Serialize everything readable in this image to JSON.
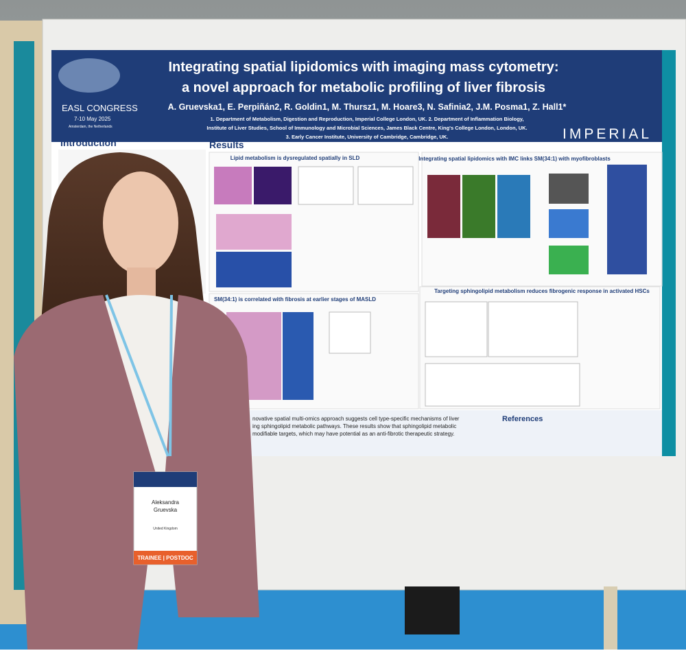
{
  "poster": {
    "title": [
      "Integrating spatial lipidomics with imaging mass cytometry:",
      "a novel approach for metabolic profiling of liver fibrosis"
    ],
    "authors": "A. Gruevska1, E. Perpiñán2, R. Goldin1, M. Thursz1, M. Hoare3, N. Safinia2, J.M. Posma1, Z. Hall1*",
    "affiliations": [
      "1. Department of Metabolism, Digestion and Reproduction, Imperial College London, UK. 2. Department of Inflammation Biology,",
      "Institute of Liver Studies, School of Immunology and Microbial Sciences, James Black Centre, King's College London, London, UK.",
      "3. Early Cancer Institute, University of Cambridge, Cambridge, UK."
    ],
    "conference": {
      "name": "EASL CONGRESS",
      "dates": "7-10 May 2025",
      "location": "Amsterdam, the Netherlands"
    },
    "brand": "IMPERIAL",
    "sections": {
      "introduction": "Introduction",
      "results": "Results",
      "references": "References"
    },
    "panels": [
      "Lipid metabolism is dysregulated spatially in SLD",
      "Integrating spatial lipidomics with IMC links SM(34:1) with myofibroblasts",
      "SM(34:1) is correlated with fibrosis at earlier stages of MASLD",
      "Targeting sphingolipid metabolism reduces fibrogenic response in activated HSCs"
    ],
    "conclusion": [
      "novative spatial multi-omics approach suggests cell type-specific mechanisms of liver",
      "ing sphingolipid metabolic pathways. These results show that sphingolipid metabolic",
      "modifiable targets, which may have potential as an anti-fibrotic therapeutic strategy."
    ]
  },
  "badge": {
    "first_name": "Aleksandra",
    "last_name": "Gruevska",
    "country": "United Kingdom",
    "category": "TRAINEE | POSTDOC"
  }
}
